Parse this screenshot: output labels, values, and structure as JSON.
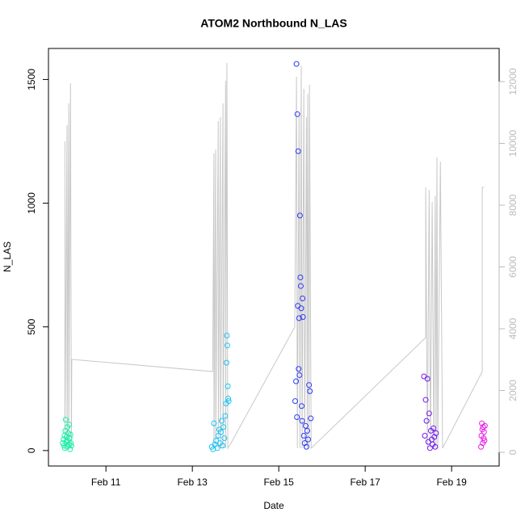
{
  "chart_data": {
    "type": "scatter",
    "title": "ATOM2 Northbound N_LAS",
    "x_label": "Date",
    "y_label": "N_LAS",
    "xlim": [
      9.67,
      20.1
    ],
    "xticks": [
      {
        "value": 11,
        "label": "Feb 11"
      },
      {
        "value": 13,
        "label": "Feb 13"
      },
      {
        "value": 15,
        "label": "Feb 15"
      },
      {
        "value": 17,
        "label": "Feb 17"
      },
      {
        "value": 19,
        "label": "Feb 19"
      }
    ],
    "ylim": [
      -62.5,
      1625.5
    ],
    "yticks": [
      0,
      500,
      1000,
      1500
    ],
    "y2lim": [
      -444,
      13072
    ],
    "y2ticks": [
      0,
      2000,
      4000,
      6000,
      8000,
      10000,
      12000
    ],
    "y2_color": "#bbbbbb",
    "series": [
      {
        "color": "#1af0a8",
        "x": [
          10.0,
          10.02,
          10.03,
          10.04,
          10.05,
          10.06,
          10.07,
          10.08,
          10.09,
          10.1,
          10.11,
          10.12,
          10.13,
          10.14,
          10.15,
          10.16,
          10.17,
          10.18,
          10.19,
          10.2
        ],
        "values": [
          30,
          45,
          20,
          60,
          10,
          80,
          125,
          35,
          55,
          15,
          95,
          40,
          70,
          25,
          105,
          50,
          5,
          65,
          30,
          20
        ]
      },
      {
        "color": "#19c5f5",
        "x": [
          13.45,
          13.48,
          13.5,
          13.52,
          13.55,
          13.58,
          13.6,
          13.62,
          13.64,
          13.66,
          13.68,
          13.7,
          13.72,
          13.74,
          13.76,
          13.78,
          13.79,
          13.8,
          13.81,
          13.82,
          13.83,
          13.84
        ],
        "values": [
          15,
          5,
          110,
          25,
          40,
          10,
          60,
          85,
          30,
          75,
          120,
          20,
          95,
          50,
          140,
          190,
          355,
          465,
          425,
          260,
          210,
          200
        ]
      },
      {
        "color": "#2e3bf5",
        "x": [
          15.38,
          15.4,
          15.41,
          15.42,
          15.43,
          15.44,
          15.45,
          15.46,
          15.47,
          15.48,
          15.49,
          15.5,
          15.51,
          15.52,
          15.53,
          15.54,
          15.55,
          15.56,
          15.58,
          15.6,
          15.62,
          15.64,
          15.66,
          15.68,
          15.7,
          15.72,
          15.74
        ],
        "values": [
          200,
          280,
          1563,
          135,
          1360,
          585,
          1210,
          330,
          535,
          305,
          950,
          700,
          665,
          575,
          180,
          120,
          615,
          540,
          60,
          30,
          100,
          15,
          80,
          45,
          265,
          240,
          130
        ]
      },
      {
        "color": "#7418f0",
        "x": [
          18.36,
          18.38,
          18.4,
          18.42,
          18.44,
          18.46,
          18.48,
          18.5,
          18.52,
          18.54,
          18.56,
          18.58,
          18.6,
          18.62,
          18.64
        ],
        "values": [
          300,
          60,
          205,
          120,
          290,
          35,
          150,
          10,
          80,
          45,
          25,
          90,
          55,
          15,
          70
        ]
      },
      {
        "color": "#e81ce8",
        "x": [
          19.68,
          19.69,
          19.7,
          19.71,
          19.72,
          19.73,
          19.74,
          19.75,
          19.76,
          19.77
        ],
        "values": [
          15,
          60,
          110,
          85,
          30,
          95,
          50,
          75,
          40,
          100
        ]
      },
      {
        "type": "line",
        "axis": "y2",
        "color": "#c8c8c8",
        "x": [
          10.05,
          10.05,
          10.1,
          10.1,
          10.14,
          10.14,
          10.18,
          10.2,
          10.21,
          13.47,
          13.5,
          13.5,
          13.54,
          13.54,
          13.6,
          13.6,
          13.65,
          13.65,
          13.71,
          13.71,
          13.77,
          13.77,
          13.8,
          13.82,
          13.88,
          15.37,
          15.41,
          15.43,
          15.47,
          15.49,
          15.52,
          15.54,
          15.58,
          15.6,
          15.64,
          15.66,
          15.67,
          15.7,
          15.71,
          15.75,
          18.4,
          18.4,
          18.44,
          18.48,
          18.51,
          18.55,
          18.59,
          18.62,
          18.64,
          18.66,
          18.68,
          18.74,
          18.79,
          19.71,
          19.71,
          19.75
        ],
        "values": [
          10065,
          131,
          10588,
          131,
          11294,
          131,
          11948,
          131,
          3007,
          2614,
          9673,
          131,
          9804,
          131,
          10719,
          131,
          10850,
          131,
          11294,
          131,
          12026,
          131,
          12601,
          131,
          261,
          4052,
          12157,
          131,
          10980,
          131,
          12500,
          131,
          11765,
          131,
          10850,
          131,
          11600,
          131,
          11900,
          131,
          3712,
          8575,
          131,
          8497,
          131,
          8105,
          131,
          8300,
          131,
          9542,
          131,
          9412,
          131,
          2614,
          8575,
          8575
        ]
      }
    ]
  }
}
